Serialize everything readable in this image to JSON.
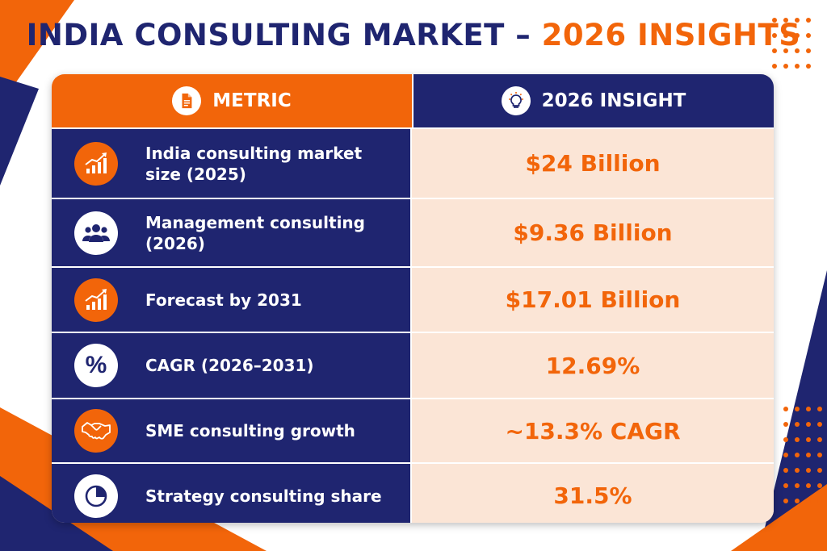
{
  "title": {
    "main": "INDIA CONSULTING MARKET – ",
    "accent": "2026 INSIGHTS"
  },
  "colors": {
    "navy": "#1f2570",
    "orange": "#f2650a",
    "peach": "#fbe5d6"
  },
  "table": {
    "header": {
      "metric": "METRIC",
      "metric_icon": "document-icon",
      "insight": "2026 INSIGHT",
      "insight_icon": "lightbulb-icon"
    },
    "rows": [
      {
        "metric": "India consulting market size (2025)",
        "insight": "$24 Billion",
        "icon": "growth-chart-icon"
      },
      {
        "metric": "Management consulting (2026)",
        "insight": "$9.36 Billion",
        "icon": "people-group-icon"
      },
      {
        "metric": "Forecast by 2031",
        "insight": "$17.01 Billion",
        "icon": "growth-chart-icon"
      },
      {
        "metric": "CAGR (2026–2031)",
        "insight": "12.69%",
        "icon": "percent-icon"
      },
      {
        "metric": "SME consulting growth",
        "insight": "~13.3% CAGR",
        "icon": "handshake-icon"
      },
      {
        "metric": "Strategy consulting share",
        "insight": "31.5%",
        "icon": "pie-chart-icon"
      }
    ]
  }
}
